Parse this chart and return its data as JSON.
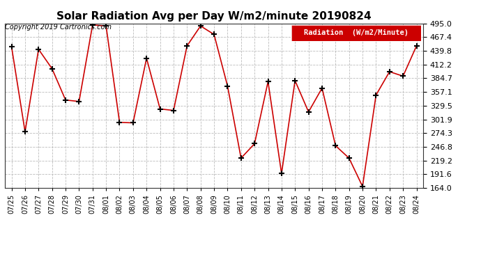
{
  "title": "Solar Radiation Avg per Day W/m2/minute 20190824",
  "copyright": "Copyright 2019 Cartronics.com",
  "legend_label": "Radiation  (W/m2/Minute)",
  "dates": [
    "07/25",
    "07/26",
    "07/27",
    "07/28",
    "07/29",
    "07/30",
    "07/31",
    "08/01",
    "08/02",
    "08/03",
    "08/04",
    "08/05",
    "08/06",
    "08/07",
    "08/08",
    "08/09",
    "08/10",
    "08/11",
    "08/12",
    "08/13",
    "08/14",
    "08/15",
    "08/16",
    "08/17",
    "08/18",
    "08/19",
    "08/20",
    "08/21",
    "08/22",
    "08/23",
    "08/24"
  ],
  "values": [
    448.0,
    277.0,
    443.0,
    404.0,
    341.0,
    338.0,
    492.0,
    490.0,
    296.0,
    295.0,
    425.0,
    323.0,
    320.0,
    450.0,
    490.0,
    473.0,
    369.0,
    224.0,
    253.0,
    378.0,
    193.0,
    380.0,
    317.0,
    365.0,
    249.0,
    224.0,
    167.0,
    351.0,
    398.0,
    389.0,
    450.0
  ],
  "line_color": "#cc0000",
  "marker": "+",
  "marker_color": "#000000",
  "marker_size": 6,
  "marker_linewidth": 1.5,
  "line_width": 1.2,
  "ylim": [
    164.0,
    495.0
  ],
  "yticks": [
    164.0,
    191.6,
    219.2,
    246.8,
    274.3,
    301.9,
    329.5,
    357.1,
    384.7,
    412.2,
    439.8,
    467.4,
    495.0
  ],
  "grid_color": "#bbbbbb",
  "grid_style": "--",
  "grid_linewidth": 0.6,
  "background_color": "#ffffff",
  "title_fontsize": 11,
  "tick_fontsize": 8,
  "xlabel_fontsize": 7,
  "copyright_fontsize": 7,
  "legend_bg": "#cc0000",
  "legend_text_color": "#ffffff",
  "legend_fontsize": 7.5
}
